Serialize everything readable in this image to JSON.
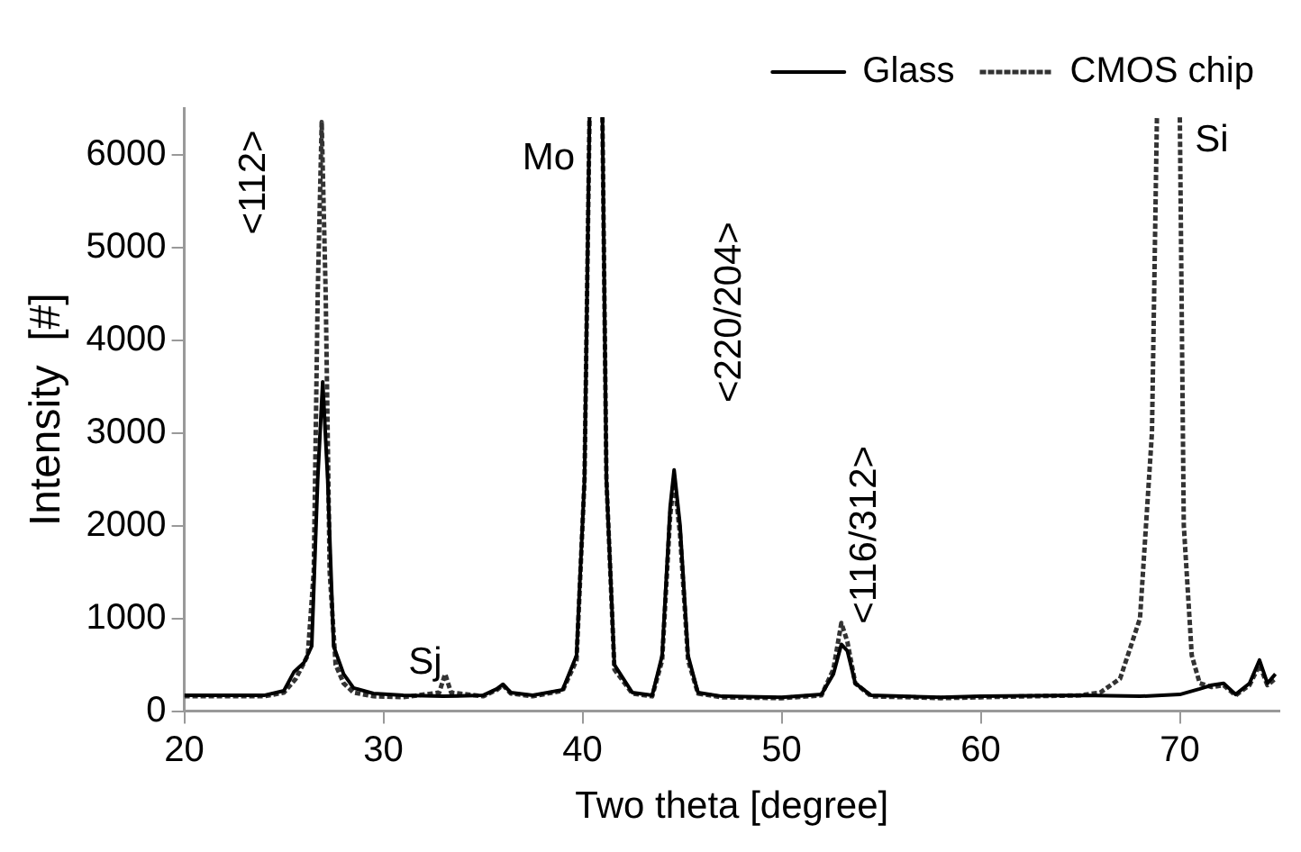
{
  "chart_data": {
    "type": "line",
    "xlabel": "Two theta [degree]",
    "ylabel": "Intensity  [#]",
    "xlim": [
      20,
      75
    ],
    "ylim": [
      0,
      6500
    ],
    "xticks": [
      20,
      30,
      40,
      50,
      60,
      70
    ],
    "yticks": [
      0,
      1000,
      2000,
      3000,
      4000,
      5000,
      6000
    ],
    "grid": false,
    "legend": "top right",
    "marker": "none",
    "series": [
      {
        "name": "Glass",
        "color": "#000000",
        "line_style": "solid",
        "x": [
          20,
          24,
          25,
          25.5,
          26,
          26.4,
          26.7,
          26.95,
          27.2,
          27.5,
          28,
          28.5,
          29.5,
          31,
          33,
          35,
          35.7,
          36,
          36.4,
          37.5,
          39,
          39.7,
          40.1,
          40.35,
          40.6,
          41.0,
          41.2,
          41.6,
          42.5,
          43.5,
          44,
          44.4,
          44.6,
          44.9,
          45.3,
          45.8,
          47,
          50,
          52,
          52.6,
          53,
          53.3,
          53.7,
          54.5,
          58,
          60,
          65,
          68,
          70,
          71,
          71.6,
          72.2,
          72.8,
          73.5,
          74,
          74.4,
          74.8
        ],
        "values": [
          170,
          170,
          220,
          420,
          520,
          700,
          2500,
          3550,
          2500,
          700,
          400,
          250,
          190,
          170,
          160,
          170,
          240,
          290,
          200,
          170,
          230,
          600,
          2500,
          6400,
          null,
          6400,
          2500,
          500,
          200,
          170,
          600,
          2200,
          2600,
          2000,
          600,
          200,
          160,
          150,
          180,
          400,
          720,
          650,
          300,
          170,
          150,
          160,
          170,
          160,
          180,
          240,
          280,
          300,
          180,
          300,
          550,
          300,
          400
        ]
      },
      {
        "name": "CMOS chip",
        "color": "#333333",
        "line_style": "dotted",
        "x": [
          20,
          24,
          25,
          25.6,
          26.2,
          26.5,
          26.7,
          26.9,
          27.1,
          27.3,
          27.6,
          28,
          28.5,
          29.5,
          31,
          32.8,
          33.1,
          33.4,
          35,
          35.7,
          36,
          36.4,
          37.5,
          39,
          39.7,
          40.1,
          40.35,
          40.6,
          41.0,
          41.2,
          41.6,
          42.5,
          43.5,
          44,
          44.4,
          44.6,
          44.9,
          45.3,
          45.8,
          47,
          50,
          52,
          52.6,
          53,
          53.3,
          53.7,
          54.5,
          58,
          60,
          65,
          66,
          67,
          68,
          68.6,
          68.85,
          69.4,
          70.0,
          70.2,
          70.6,
          71,
          71.6,
          72.2,
          72.8,
          73.5,
          74,
          74.4,
          74.8
        ],
        "values": [
          160,
          160,
          200,
          350,
          600,
          1500,
          4500,
          6350,
          4500,
          1500,
          500,
          300,
          200,
          160,
          150,
          200,
          400,
          200,
          160,
          230,
          280,
          190,
          160,
          220,
          550,
          2500,
          6400,
          null,
          6400,
          2500,
          450,
          190,
          160,
          550,
          2100,
          2500,
          1900,
          550,
          190,
          150,
          140,
          170,
          450,
          950,
          750,
          300,
          160,
          140,
          150,
          170,
          200,
          350,
          1000,
          3000,
          6400,
          null,
          6400,
          2000,
          600,
          300,
          260,
          280,
          170,
          280,
          500,
          280,
          350
        ]
      }
    ],
    "annotations": [
      "<112>",
      "Mo",
      "Sj",
      "<220/204>",
      "<116/312>",
      "Si"
    ]
  }
}
